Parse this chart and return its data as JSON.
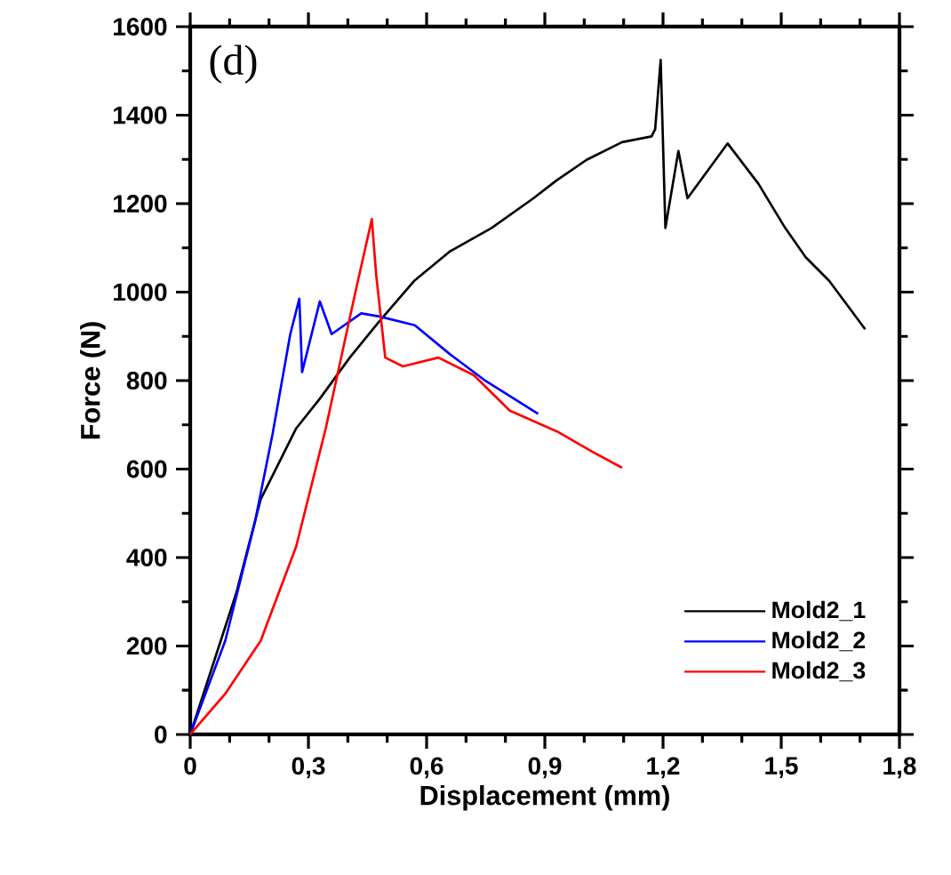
{
  "chart_data": {
    "type": "line",
    "xlabel": "Displacement (mm)",
    "ylabel": "Force (N)",
    "annotations": [
      "(d)"
    ],
    "xlim": [
      0,
      1.8
    ],
    "ylim": [
      0,
      1600
    ],
    "xticks": [
      0,
      {
        "value": 0.3,
        "label": "0,3"
      },
      {
        "value": 0.6,
        "label": "0,6"
      },
      {
        "value": 0.9,
        "label": "0,9"
      },
      {
        "value": 1.2,
        "label": "1,2"
      },
      {
        "value": 1.5,
        "label": "1,5"
      },
      {
        "value": 1.8,
        "label": "1,8"
      }
    ],
    "yticks": [
      0,
      200,
      400,
      600,
      800,
      1000,
      1200,
      1400,
      1600
    ],
    "grid": false,
    "legend": "bottom right",
    "marker": "none",
    "line_style": "solid",
    "series": [
      {
        "name": "Mold2_1",
        "color": "#000000",
        "x": [
          0,
          0.117,
          0.179,
          0.269,
          0.329,
          0.405,
          0.478,
          0.568,
          0.659,
          0.765,
          0.871,
          0.929,
          1.006,
          1.096,
          1.171,
          1.18,
          1.194,
          1.206,
          1.239,
          1.262,
          1.364,
          1.442,
          1.51,
          1.562,
          1.622,
          1.713
        ],
        "values": [
          0,
          320,
          532,
          692,
          759,
          852,
          932,
          1025,
          1092,
          1145,
          1212,
          1252,
          1299,
          1339,
          1352,
          1368,
          1525,
          1145,
          1319,
          1212,
          1336,
          1245,
          1145,
          1079,
          1025,
          916
        ]
      },
      {
        "name": "Mold2_2",
        "color": "#0000ff",
        "x": [
          0,
          0.089,
          0.164,
          0.209,
          0.254,
          0.277,
          0.284,
          0.329,
          0.359,
          0.434,
          0.48,
          0.57,
          0.66,
          0.75,
          0.883
        ],
        "values": [
          0,
          212,
          479,
          679,
          905,
          985,
          819,
          979,
          905,
          952,
          945,
          925,
          859,
          799,
          725
        ]
      },
      {
        "name": "Mold2_3",
        "color": "#ff0000",
        "x": [
          0,
          0.089,
          0.179,
          0.269,
          0.344,
          0.419,
          0.461,
          0.472,
          0.495,
          0.54,
          0.63,
          0.72,
          0.811,
          0.931,
          1.021,
          1.096
        ],
        "values": [
          0,
          92,
          212,
          425,
          692,
          999,
          1165,
          1039,
          852,
          832,
          852,
          812,
          732,
          685,
          639,
          603
        ]
      }
    ]
  }
}
